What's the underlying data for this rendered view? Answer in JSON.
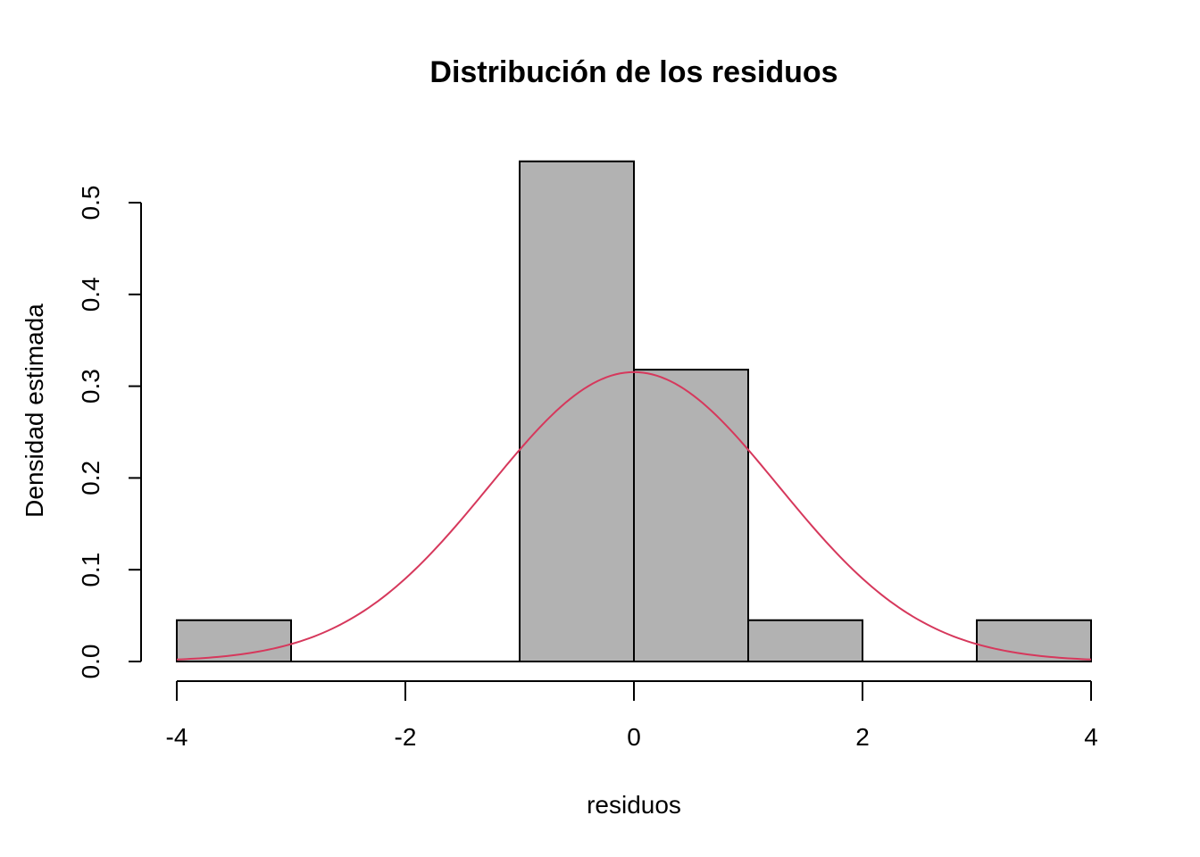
{
  "chart_data": {
    "type": "bar",
    "title": "Distribución de los residuos",
    "xlabel": "residuos",
    "ylabel": "Densidad estimada",
    "bins": [
      {
        "from": -4,
        "to": -3,
        "density": 0.045
      },
      {
        "from": -3,
        "to": -2,
        "density": 0
      },
      {
        "from": -2,
        "to": -1,
        "density": 0
      },
      {
        "from": -1,
        "to": 0,
        "density": 0.545
      },
      {
        "from": 0,
        "to": 1,
        "density": 0.318
      },
      {
        "from": 1,
        "to": 2,
        "density": 0.045
      },
      {
        "from": 2,
        "to": 3,
        "density": 0
      },
      {
        "from": 3,
        "to": 4,
        "density": 0.045
      }
    ],
    "density_curve": {
      "distribution": "normal",
      "mean": 0,
      "sd": 1.265,
      "color": "#d6385c"
    },
    "xlim": [
      -4,
      4
    ],
    "ylim": [
      0,
      0.5
    ],
    "xticks": [
      "-4",
      "-2",
      "0",
      "2",
      "4"
    ],
    "yticks": [
      "0.0",
      "0.1",
      "0.2",
      "0.3",
      "0.4",
      "0.5"
    ],
    "bar_color": "#b2b2b2",
    "grid": false
  }
}
